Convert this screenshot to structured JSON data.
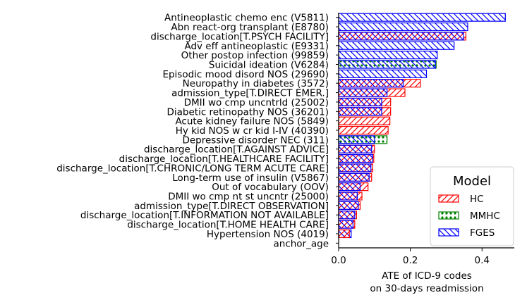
{
  "chart_data": {
    "type": "bar",
    "orientation": "horizontal",
    "title": "",
    "xlabel": "ATE of ICD-9 codes",
    "xlabel_line2": "on 30-days readmission",
    "xlim": [
      0,
      0.49
    ],
    "xticks": [
      0.0,
      0.2,
      0.4
    ],
    "xtick_labels": [
      "0.0",
      "0.2",
      "0.4"
    ],
    "categories": [
      "Antineoplastic chemo enc (V5811)",
      "Abn react-org transplant (E8780)",
      "discharge_location[T.PSYCH FACILITY]",
      "Adv eff antineoplastic (E9331)",
      "Other postop infection (99859)",
      "Suicidal ideation (V6284)",
      "Episodic mood disord NOS (29690)",
      "Neuropathy in diabetes (3572)",
      "admission_type[T.DIRECT EMER.]",
      "DMII wo cmp uncntrld (25002)",
      "Diabetic retinopathy NOS (36201)",
      "Acute kidney failure NOS (5849)",
      "Hy kid NOS w cr kid I-IV (40390)",
      "Depressive disorder NEC (311)",
      "discharge_location[T.AGAINST ADVICE]",
      "discharge_location[T.HEALTHCARE FACILITY]",
      "discharge_location[T.CHRONIC/LONG TERM ACUTE CARE]",
      "Long-term use of insulin (V5867)",
      "Out of vocabulary (OOV)",
      "DMII wo cmp nt st uncntr (25000)",
      "admission_type[T.DIRECT OBSERVATION]",
      "discharge_location[T.INFORMATION NOT AVAILABLE]",
      "discharge_location[T.HOME HEALTH CARE]",
      "Hypertension NOS (4019)",
      "anchor_age"
    ],
    "series": [
      {
        "name": "HC",
        "color": "#ff0000",
        "pattern": "diagonal-forward",
        "values": [
          null,
          null,
          0.355,
          null,
          null,
          null,
          null,
          0.228,
          0.185,
          0.145,
          0.145,
          0.143,
          0.138,
          null,
          0.1,
          0.098,
          0.095,
          0.092,
          0.082,
          0.065,
          0.06,
          0.05,
          0.045,
          0.03,
          null
        ]
      },
      {
        "name": "MMHC",
        "color": "#008000",
        "pattern": "dots",
        "values": [
          null,
          null,
          null,
          null,
          null,
          0.272,
          null,
          null,
          null,
          null,
          null,
          null,
          null,
          0.135,
          null,
          null,
          null,
          null,
          null,
          null,
          null,
          null,
          null,
          null,
          null
        ]
      },
      {
        "name": "FGES",
        "color": "#0000ff",
        "pattern": "diagonal-backward",
        "values": [
          0.465,
          0.36,
          0.348,
          0.322,
          0.275,
          0.27,
          0.245,
          0.18,
          0.135,
          0.12,
          0.12,
          null,
          null,
          0.1,
          0.092,
          0.095,
          0.09,
          0.085,
          0.06,
          0.052,
          0.055,
          0.045,
          0.04,
          0.035,
          null
        ]
      }
    ],
    "legend": {
      "title": "Model",
      "entries": [
        "HC",
        "MMHC",
        "FGES"
      ],
      "placement": "lower-right"
    }
  }
}
